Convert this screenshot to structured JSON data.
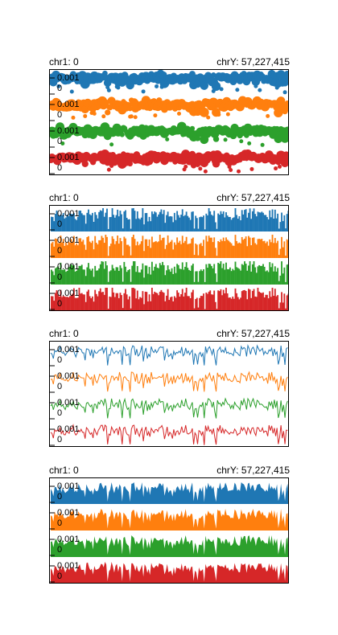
{
  "chart_data": [
    {
      "type": "scatter",
      "region_start_label": "chr1: 0",
      "region_end_label": "chrY: 57,227,415",
      "tracks": [
        {
          "color": "#1f77b4",
          "max_label": "0.001",
          "min_label": "0"
        },
        {
          "color": "#ff7f0e",
          "max_label": "0.001",
          "min_label": "0"
        },
        {
          "color": "#2ca02c",
          "max_label": "0.001",
          "min_label": "0"
        },
        {
          "color": "#d62728",
          "max_label": "0.001",
          "min_label": "0"
        }
      ]
    },
    {
      "type": "bar",
      "region_start_label": "chr1: 0",
      "region_end_label": "chrY: 57,227,415",
      "tracks": [
        {
          "color": "#1f77b4",
          "max_label": "0.001",
          "min_label": "0"
        },
        {
          "color": "#ff7f0e",
          "max_label": "0.001",
          "min_label": "0"
        },
        {
          "color": "#2ca02c",
          "max_label": "0.001",
          "min_label": "0"
        },
        {
          "color": "#d62728",
          "max_label": "0.001",
          "min_label": "0"
        }
      ]
    },
    {
      "type": "line",
      "region_start_label": "chr1: 0",
      "region_end_label": "chrY: 57,227,415",
      "tracks": [
        {
          "color": "#1f77b4",
          "max_label": "0.001",
          "min_label": "0"
        },
        {
          "color": "#ff7f0e",
          "max_label": "0.001",
          "min_label": "0"
        },
        {
          "color": "#2ca02c",
          "max_label": "0.001",
          "min_label": "0"
        },
        {
          "color": "#d62728",
          "max_label": "0.001",
          "min_label": "0"
        }
      ]
    },
    {
      "type": "area",
      "region_start_label": "chr1: 0",
      "region_end_label": "chrY: 57,227,415",
      "tracks": [
        {
          "color": "#1f77b4",
          "max_label": "0.001",
          "min_label": "0"
        },
        {
          "color": "#ff7f0e",
          "max_label": "0.001",
          "min_label": "0"
        },
        {
          "color": "#2ca02c",
          "max_label": "0.001",
          "min_label": "0"
        },
        {
          "color": "#d62728",
          "max_label": "0.001",
          "min_label": "0"
        }
      ]
    }
  ]
}
